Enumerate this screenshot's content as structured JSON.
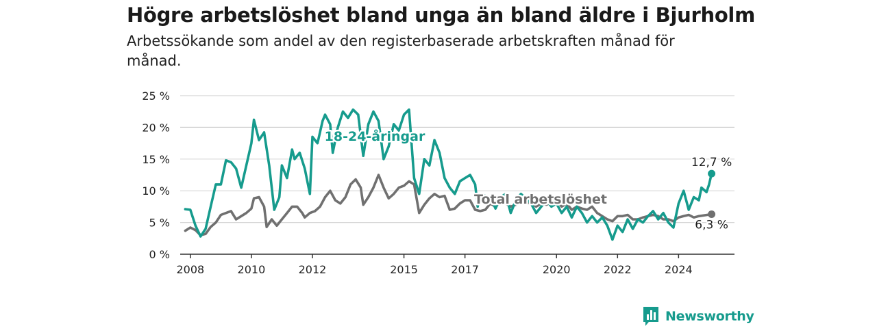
{
  "header": {
    "title": "Högre arbetslöshet bland unga än bland äldre i Bjurholm",
    "subtitle": "Arbetssökande som andel av den registerbaserade arbetskraften månad för månad."
  },
  "brand": {
    "name": "Newsworthy",
    "icon": "newsworthy-logo-icon"
  },
  "colors": {
    "youth": "#169b8d",
    "total": "#707070",
    "grid": "#d6d6d6",
    "axis": "#333333"
  },
  "chart_data": {
    "type": "line",
    "x_ticks": [
      "2008",
      "2010",
      "2012",
      "2015",
      "2017",
      "2020",
      "2022",
      "2024"
    ],
    "y_ticks": [
      "0 %",
      "5 %",
      "10 %",
      "15 %",
      "20 %",
      "25 %"
    ],
    "ylim": [
      0,
      25
    ],
    "xlim": [
      "2007-09",
      "2025-11"
    ],
    "grid": true,
    "series": [
      {
        "name": "18-24-åringar",
        "key": "youth",
        "end_label": "12,7 %",
        "points": [
          [
            "2007-11",
            7.1
          ],
          [
            "2008-01",
            7.0
          ],
          [
            "2008-03",
            4.5
          ],
          [
            "2008-05",
            2.8
          ],
          [
            "2008-07",
            4.0
          ],
          [
            "2008-09",
            7.5
          ],
          [
            "2008-11",
            11.0
          ],
          [
            "2009-01",
            11.0
          ],
          [
            "2009-03",
            14.8
          ],
          [
            "2009-05",
            14.5
          ],
          [
            "2009-07",
            13.5
          ],
          [
            "2009-09",
            10.5
          ],
          [
            "2009-11",
            14.0
          ],
          [
            "2010-01",
            17.5
          ],
          [
            "2010-02",
            21.2
          ],
          [
            "2010-04",
            18.0
          ],
          [
            "2010-06",
            19.2
          ],
          [
            "2010-08",
            14.0
          ],
          [
            "2010-10",
            7.0
          ],
          [
            "2010-12",
            9.0
          ],
          [
            "2011-01",
            14.0
          ],
          [
            "2011-03",
            12.0
          ],
          [
            "2011-05",
            16.5
          ],
          [
            "2011-06",
            15.0
          ],
          [
            "2011-08",
            16.0
          ],
          [
            "2011-10",
            13.5
          ],
          [
            "2011-12",
            9.5
          ],
          [
            "2012-01",
            18.5
          ],
          [
            "2012-03",
            17.5
          ],
          [
            "2012-05",
            21.0
          ],
          [
            "2012-06",
            22.0
          ],
          [
            "2012-08",
            20.5
          ],
          [
            "2012-09",
            16.0
          ],
          [
            "2012-11",
            20.0
          ],
          [
            "2013-01",
            22.5
          ],
          [
            "2013-03",
            21.5
          ],
          [
            "2013-05",
            22.8
          ],
          [
            "2013-07",
            22.0
          ],
          [
            "2013-09",
            15.5
          ],
          [
            "2013-11",
            20.5
          ],
          [
            "2014-01",
            22.5
          ],
          [
            "2014-03",
            21.0
          ],
          [
            "2014-05",
            15.0
          ],
          [
            "2014-07",
            17.0
          ],
          [
            "2014-09",
            20.5
          ],
          [
            "2014-11",
            19.5
          ],
          [
            "2015-01",
            22.0
          ],
          [
            "2015-03",
            22.8
          ],
          [
            "2015-05",
            12.0
          ],
          [
            "2015-07",
            9.5
          ],
          [
            "2015-09",
            15.0
          ],
          [
            "2015-11",
            14.0
          ],
          [
            "2016-01",
            18.0
          ],
          [
            "2016-03",
            16.0
          ],
          [
            "2016-05",
            12.0
          ],
          [
            "2016-07",
            10.5
          ],
          [
            "2016-09",
            9.5
          ],
          [
            "2016-11",
            11.5
          ],
          [
            "2017-01",
            12.0
          ],
          [
            "2017-03",
            12.5
          ],
          [
            "2017-05",
            11.0
          ],
          [
            "2017-06",
            7.5
          ],
          [
            "2017-07",
            9.5
          ],
          [
            "2017-09",
            9.2
          ],
          [
            "2017-11",
            9.0
          ],
          [
            "2018-01",
            7.2
          ],
          [
            "2018-03",
            9.0
          ],
          [
            "2018-05",
            9.5
          ],
          [
            "2018-07",
            6.5
          ],
          [
            "2018-09",
            8.5
          ],
          [
            "2018-11",
            9.5
          ],
          [
            "2019-01",
            8.8
          ],
          [
            "2019-03",
            8.0
          ],
          [
            "2019-05",
            6.5
          ],
          [
            "2019-07",
            7.5
          ],
          [
            "2019-09",
            8.5
          ],
          [
            "2019-11",
            7.5
          ],
          [
            "2020-01",
            8.0
          ],
          [
            "2020-03",
            6.5
          ],
          [
            "2020-05",
            7.5
          ],
          [
            "2020-07",
            5.8
          ],
          [
            "2020-09",
            7.5
          ],
          [
            "2020-11",
            6.5
          ],
          [
            "2021-01",
            5.0
          ],
          [
            "2021-03",
            6.0
          ],
          [
            "2021-05",
            5.0
          ],
          [
            "2021-07",
            5.8
          ],
          [
            "2021-09",
            4.5
          ],
          [
            "2021-11",
            2.3
          ],
          [
            "2022-01",
            4.5
          ],
          [
            "2022-03",
            3.5
          ],
          [
            "2022-05",
            5.5
          ],
          [
            "2022-07",
            4.0
          ],
          [
            "2022-09",
            5.5
          ],
          [
            "2022-11",
            5.0
          ],
          [
            "2023-01",
            6.0
          ],
          [
            "2023-03",
            6.8
          ],
          [
            "2023-05",
            5.5
          ],
          [
            "2023-07",
            6.5
          ],
          [
            "2023-09",
            5.0
          ],
          [
            "2023-11",
            4.2
          ],
          [
            "2024-01",
            8.0
          ],
          [
            "2024-03",
            10.0
          ],
          [
            "2024-05",
            7.0
          ],
          [
            "2024-07",
            9.0
          ],
          [
            "2024-09",
            8.5
          ],
          [
            "2024-10",
            10.5
          ],
          [
            "2024-12",
            9.8
          ],
          [
            "2025-01",
            11.0
          ],
          [
            "2025-02",
            12.7
          ]
        ]
      },
      {
        "name": "Total arbetslöshet",
        "key": "total",
        "end_label": "6,3 %",
        "points": [
          [
            "2007-11",
            3.7
          ],
          [
            "2008-01",
            4.2
          ],
          [
            "2008-03",
            3.8
          ],
          [
            "2008-05",
            3.0
          ],
          [
            "2008-07",
            3.2
          ],
          [
            "2008-09",
            4.3
          ],
          [
            "2008-11",
            5.0
          ],
          [
            "2009-01",
            6.2
          ],
          [
            "2009-03",
            6.5
          ],
          [
            "2009-05",
            6.8
          ],
          [
            "2009-07",
            5.5
          ],
          [
            "2009-09",
            6.0
          ],
          [
            "2009-11",
            6.5
          ],
          [
            "2010-01",
            7.2
          ],
          [
            "2010-02",
            8.8
          ],
          [
            "2010-04",
            9.0
          ],
          [
            "2010-06",
            7.5
          ],
          [
            "2010-07",
            4.3
          ],
          [
            "2010-09",
            5.5
          ],
          [
            "2010-11",
            4.5
          ],
          [
            "2011-01",
            5.5
          ],
          [
            "2011-03",
            6.5
          ],
          [
            "2011-05",
            7.5
          ],
          [
            "2011-07",
            7.5
          ],
          [
            "2011-09",
            6.5
          ],
          [
            "2011-10",
            5.8
          ],
          [
            "2011-12",
            6.5
          ],
          [
            "2012-02",
            6.8
          ],
          [
            "2012-04",
            7.5
          ],
          [
            "2012-06",
            9.0
          ],
          [
            "2012-08",
            10.0
          ],
          [
            "2012-10",
            8.5
          ],
          [
            "2012-12",
            8.0
          ],
          [
            "2013-02",
            9.0
          ],
          [
            "2013-04",
            11.0
          ],
          [
            "2013-06",
            11.8
          ],
          [
            "2013-08",
            10.5
          ],
          [
            "2013-09",
            7.8
          ],
          [
            "2013-11",
            9.0
          ],
          [
            "2014-01",
            10.5
          ],
          [
            "2014-03",
            12.5
          ],
          [
            "2014-05",
            10.5
          ],
          [
            "2014-07",
            8.8
          ],
          [
            "2014-09",
            9.5
          ],
          [
            "2014-11",
            10.5
          ],
          [
            "2015-01",
            10.8
          ],
          [
            "2015-03",
            11.5
          ],
          [
            "2015-05",
            11.0
          ],
          [
            "2015-07",
            6.5
          ],
          [
            "2015-09",
            7.8
          ],
          [
            "2015-11",
            8.8
          ],
          [
            "2016-01",
            9.5
          ],
          [
            "2016-03",
            9.0
          ],
          [
            "2016-05",
            9.2
          ],
          [
            "2016-07",
            7.0
          ],
          [
            "2016-09",
            7.2
          ],
          [
            "2016-11",
            8.0
          ],
          [
            "2017-01",
            8.5
          ],
          [
            "2017-03",
            8.5
          ],
          [
            "2017-05",
            7.0
          ],
          [
            "2017-07",
            6.8
          ],
          [
            "2017-09",
            7.0
          ],
          [
            "2017-11",
            8.0
          ],
          [
            "2018-01",
            7.5
          ],
          [
            "2018-03",
            8.2
          ],
          [
            "2018-05",
            8.0
          ],
          [
            "2018-07",
            7.5
          ],
          [
            "2018-09",
            7.8
          ],
          [
            "2018-11",
            8.5
          ],
          [
            "2019-01",
            8.0
          ],
          [
            "2019-03",
            8.2
          ],
          [
            "2019-05",
            7.5
          ],
          [
            "2019-07",
            8.0
          ],
          [
            "2019-09",
            7.8
          ],
          [
            "2019-11",
            8.2
          ],
          [
            "2020-01",
            8.5
          ],
          [
            "2020-03",
            7.5
          ],
          [
            "2020-05",
            8.0
          ],
          [
            "2020-07",
            7.0
          ],
          [
            "2020-09",
            7.5
          ],
          [
            "2020-11",
            7.2
          ],
          [
            "2021-01",
            7.0
          ],
          [
            "2021-03",
            7.5
          ],
          [
            "2021-05",
            6.5
          ],
          [
            "2021-07",
            6.0
          ],
          [
            "2021-09",
            5.5
          ],
          [
            "2021-11",
            5.2
          ],
          [
            "2022-01",
            6.0
          ],
          [
            "2022-03",
            6.0
          ],
          [
            "2022-05",
            6.2
          ],
          [
            "2022-07",
            5.5
          ],
          [
            "2022-09",
            5.5
          ],
          [
            "2022-11",
            5.8
          ],
          [
            "2023-01",
            6.0
          ],
          [
            "2023-03",
            6.2
          ],
          [
            "2023-05",
            6.0
          ],
          [
            "2023-07",
            5.5
          ],
          [
            "2023-09",
            5.5
          ],
          [
            "2023-11",
            5.2
          ],
          [
            "2024-01",
            5.8
          ],
          [
            "2024-03",
            6.0
          ],
          [
            "2024-05",
            6.2
          ],
          [
            "2024-07",
            5.8
          ],
          [
            "2024-09",
            6.0
          ],
          [
            "2025-02",
            6.3
          ]
        ]
      }
    ]
  }
}
